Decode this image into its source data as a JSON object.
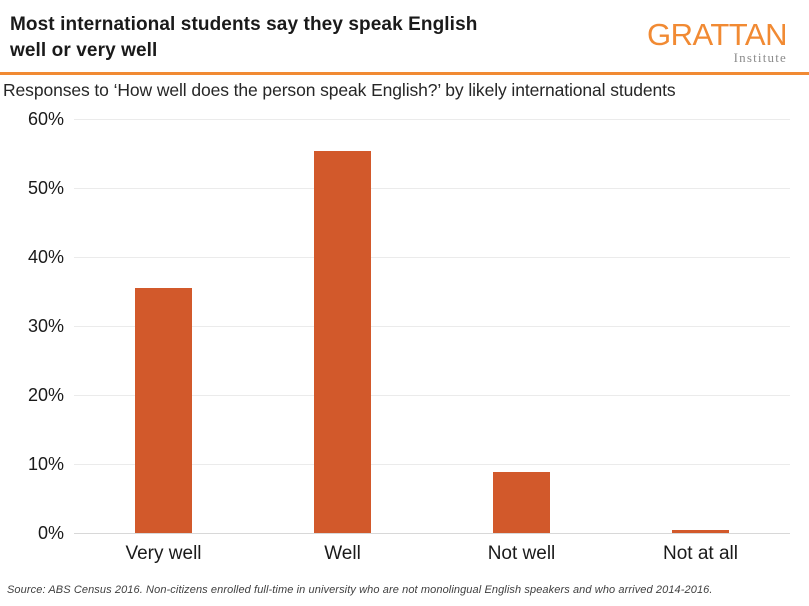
{
  "header": {
    "title_line1": "Most international students say they speak English",
    "title_line2": "well or very well",
    "logo": {
      "wordmark": "GRATTAN",
      "subname": "Institute",
      "wordmark_color": "#f18a33"
    }
  },
  "subtitle": "Responses to ‘How well does the person speak English?’ by likely international students",
  "chart_data": {
    "type": "bar",
    "title": "Most international students say they speak English well or very well",
    "subtitle": "Responses to ‘How well does the person speak English?’ by likely international students",
    "categories": [
      "Very well",
      "Well",
      "Not well",
      "Not at all"
    ],
    "values": [
      35.5,
      55.3,
      8.8,
      0.4
    ],
    "xlabel": "",
    "ylabel": "",
    "ylim": [
      0,
      60
    ],
    "yticks": [
      0,
      10,
      20,
      30,
      40,
      50,
      60
    ],
    "ytick_suffix": "%",
    "grid": true,
    "legend": false,
    "bar_color": "#d2592b"
  },
  "source": "Source: ABS Census 2016. Non-citizens enrolled full-time in university who are not monolingual English speakers and who arrived 2014-2016.",
  "colors": {
    "accent_orange": "#f18a33",
    "bar_orange": "#d2592b",
    "gridline": "#ebebeb",
    "baseline": "#d8d8d8"
  }
}
